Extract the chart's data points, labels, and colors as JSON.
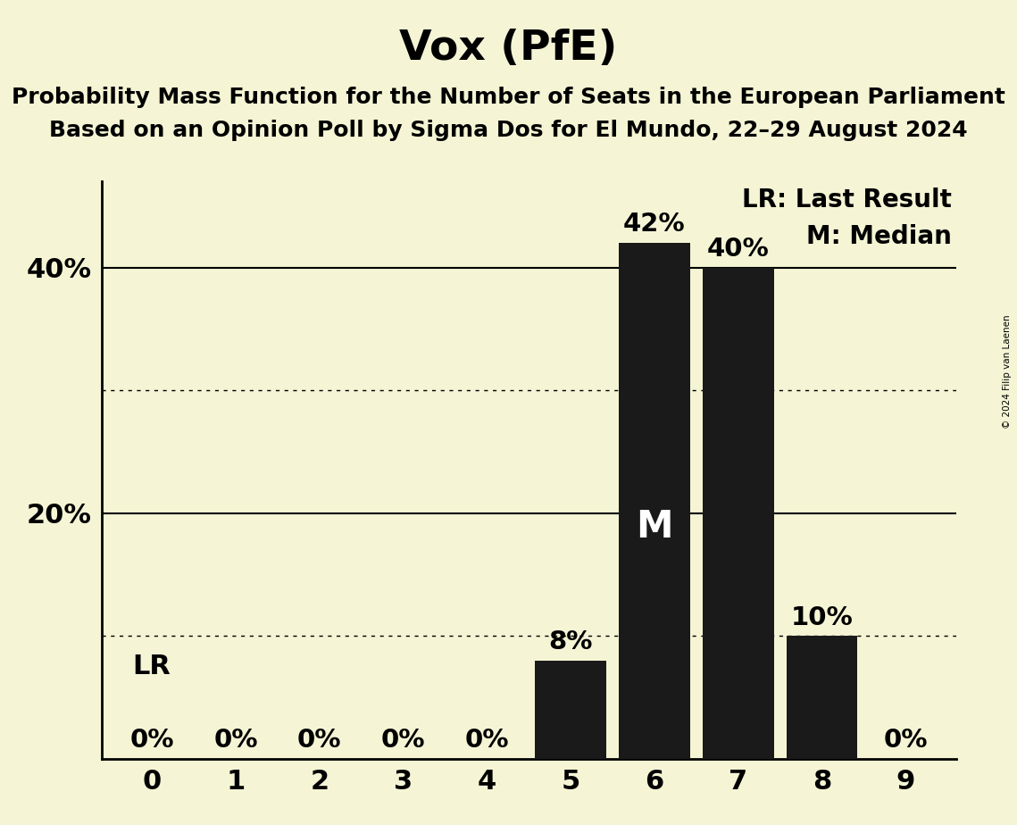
{
  "title": "Vox (PfE)",
  "subtitle1": "Probability Mass Function for the Number of Seats in the European Parliament",
  "subtitle2": "Based on an Opinion Poll by Sigma Dos for El Mundo, 22–29 August 2024",
  "copyright": "© 2024 Filip van Laenen",
  "categories": [
    0,
    1,
    2,
    3,
    4,
    5,
    6,
    7,
    8,
    9
  ],
  "values": [
    0,
    0,
    0,
    0,
    0,
    8,
    42,
    40,
    10,
    0
  ],
  "bar_color": "#1a1a1a",
  "background_color": "#f5f5d5",
  "ylim": [
    0,
    47
  ],
  "solid_grid": [
    20,
    40
  ],
  "dotted_grid": [
    10,
    30
  ],
  "median_bar": 6,
  "median_label": "M",
  "lr_label": "LR",
  "legend_lr": "LR: Last Result",
  "legend_m": "M: Median",
  "title_fontsize": 34,
  "subtitle_fontsize": 18,
  "bar_label_fontsize": 21,
  "axis_tick_fontsize": 22,
  "legend_fontsize": 20,
  "median_label_fontsize": 30,
  "lr_label_fontsize": 22
}
